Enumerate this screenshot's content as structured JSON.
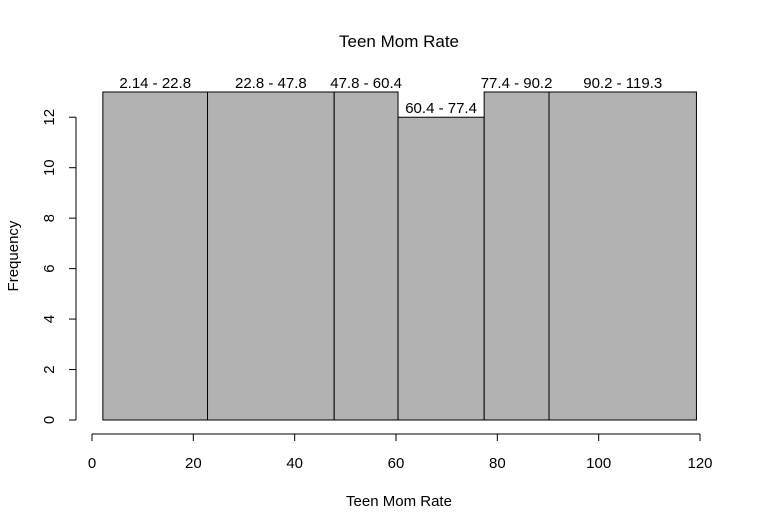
{
  "chart_data": {
    "type": "bar",
    "title": "Teen Mom Rate",
    "xlabel": "Teen Mom Rate",
    "ylabel": "Frequency",
    "xlim": [
      0,
      120
    ],
    "ylim": [
      0,
      13
    ],
    "x_ticks": [
      0,
      20,
      40,
      60,
      80,
      100,
      120
    ],
    "y_ticks": [
      0,
      2,
      4,
      6,
      8,
      10,
      12
    ],
    "bins": [
      {
        "start": 2.14,
        "end": 22.8,
        "value": 13,
        "label": "2.14 - 22.8"
      },
      {
        "start": 22.8,
        "end": 47.8,
        "value": 13,
        "label": "22.8 - 47.8"
      },
      {
        "start": 47.8,
        "end": 60.4,
        "value": 13,
        "label": "47.8 - 60.4"
      },
      {
        "start": 60.4,
        "end": 77.4,
        "value": 12,
        "label": "60.4 - 77.4"
      },
      {
        "start": 77.4,
        "end": 90.2,
        "value": 13,
        "label": "77.4 - 90.2"
      },
      {
        "start": 90.2,
        "end": 119.3,
        "value": 13,
        "label": "90.2 - 119.3"
      }
    ],
    "bar_color": "#b2b2b2",
    "grid": false
  }
}
